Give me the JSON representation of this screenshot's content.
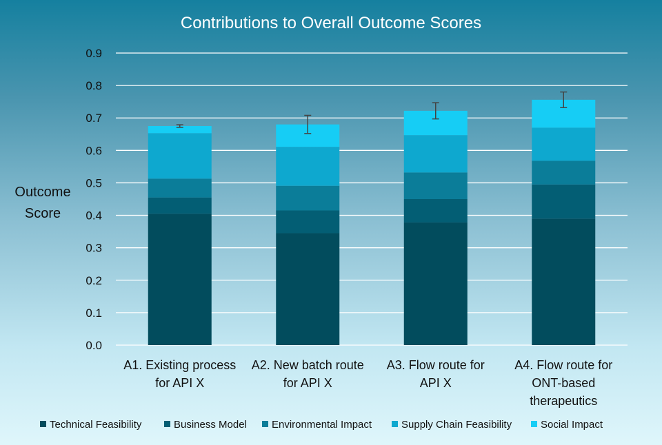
{
  "chart_data": {
    "type": "bar",
    "stacked": true,
    "title": "Contributions to Overall Outcome Scores",
    "ylabel": [
      "Outcome",
      "Score"
    ],
    "xlabel": "",
    "ylim": [
      0,
      0.9
    ],
    "yticks": [
      "0.0",
      "0.1",
      "0.2",
      "0.3",
      "0.4",
      "0.5",
      "0.6",
      "0.7",
      "0.8",
      "0.9"
    ],
    "grid": true,
    "legend_position": "bottom",
    "categories": [
      [
        "A1. Existing process",
        "for API X"
      ],
      [
        "A2. New batch route",
        "for API X"
      ],
      [
        "A3. Flow route for",
        "API X"
      ],
      [
        "A4. Flow route for",
        "ONT-based",
        "therapeutics"
      ]
    ],
    "series": [
      {
        "name": "Technical Feasibility",
        "color": "#024c5d",
        "values": [
          0.405,
          0.345,
          0.378,
          0.39
        ]
      },
      {
        "name": "Business Model",
        "color": "#035e74",
        "values": [
          0.05,
          0.07,
          0.072,
          0.105
        ]
      },
      {
        "name": "Environmental Impact",
        "color": "#0b7d99",
        "values": [
          0.058,
          0.076,
          0.082,
          0.073
        ]
      },
      {
        "name": "Supply Chain Feasibility",
        "color": "#0ea8cf",
        "values": [
          0.14,
          0.12,
          0.115,
          0.102
        ]
      },
      {
        "name": "Social Impact",
        "color": "#16cdf5",
        "values": [
          0.022,
          0.069,
          0.075,
          0.086
        ]
      }
    ],
    "error_bars": [
      0.004,
      0.028,
      0.025,
      0.024
    ]
  }
}
